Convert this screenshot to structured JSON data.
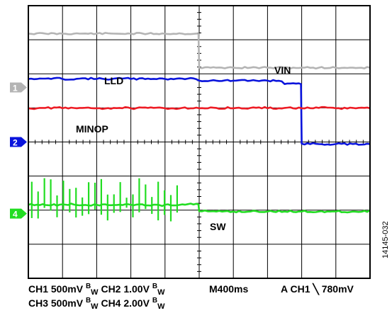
{
  "chart_data": {
    "type": "line",
    "title": "",
    "xlabel": "",
    "ylabel": "",
    "grid": true,
    "x": [
      0,
      0.5,
      1,
      1.5,
      2,
      2.5,
      3,
      3.5,
      4,
      4.5,
      5,
      5.5,
      6,
      6.5,
      7,
      7.5,
      8,
      8.5,
      9,
      9.5,
      10
    ],
    "xlim": [
      0,
      10
    ],
    "ylim": [
      0,
      8
    ],
    "series": [
      {
        "name": "VIN",
        "color": "#b4b4b4",
        "values": [
          7.18,
          7.18,
          7.18,
          7.18,
          7.18,
          7.18,
          7.18,
          7.18,
          7.18,
          7.18,
          6.18,
          6.18,
          6.18,
          6.18,
          6.18,
          6.18,
          6.18,
          6.18,
          6.18,
          6.18,
          6.18
        ]
      },
      {
        "name": "LLD",
        "color": "#0a14dc",
        "values": [
          5.85,
          5.86,
          5.85,
          5.86,
          5.85,
          5.86,
          5.85,
          5.86,
          5.85,
          5.86,
          5.8,
          5.8,
          5.8,
          5.8,
          5.8,
          5.7,
          3.95,
          3.94,
          3.94,
          3.94,
          3.94
        ]
      },
      {
        "name": "MINOP",
        "color": "#ee1c25",
        "values": [
          4.99,
          5.0,
          4.99,
          5.0,
          4.99,
          5.0,
          4.99,
          5.0,
          4.99,
          5.0,
          4.99,
          5.0,
          4.99,
          5.0,
          4.99,
          5.0,
          4.99,
          5.0,
          4.99,
          5.0,
          4.99
        ]
      },
      {
        "name": "SW",
        "color": "#22dd22",
        "values": [
          2.16,
          2.15,
          2.17,
          2.14,
          2.16,
          2.15,
          2.16,
          2.14,
          2.16,
          2.17,
          1.97,
          1.96,
          1.96,
          1.96,
          1.96,
          1.96,
          1.96,
          1.96,
          1.96,
          1.96,
          2.0
        ]
      }
    ],
    "channel_markers": [
      {
        "label": "1",
        "color": "#b4b4b4"
      },
      {
        "label": "2",
        "color": "#0a14dc"
      },
      {
        "label": "4",
        "color": "#22dd22"
      }
    ],
    "annotations": [
      "VIN",
      "LLD",
      "MINOP",
      "SW"
    ],
    "footer": {
      "line1_ch1": "CH1 500mV ",
      "line1_b1": "B",
      "line1_w1": "W",
      "line1_ch2": " CH2 1.00V ",
      "line1_b2": "B",
      "line1_w2": "W",
      "timebase": "M400ms",
      "trigger": "A  CH1 ",
      "trigger_symbol": "╲",
      "trigger_level": " 780mV",
      "line2_ch3": "CH3 500mV ",
      "line2_b3": "B",
      "line2_w3": "W",
      "line2_ch4": " CH4 2.00V ",
      "line2_b4": "B",
      "line2_w4": "W"
    },
    "figure_id": "14145-032"
  }
}
